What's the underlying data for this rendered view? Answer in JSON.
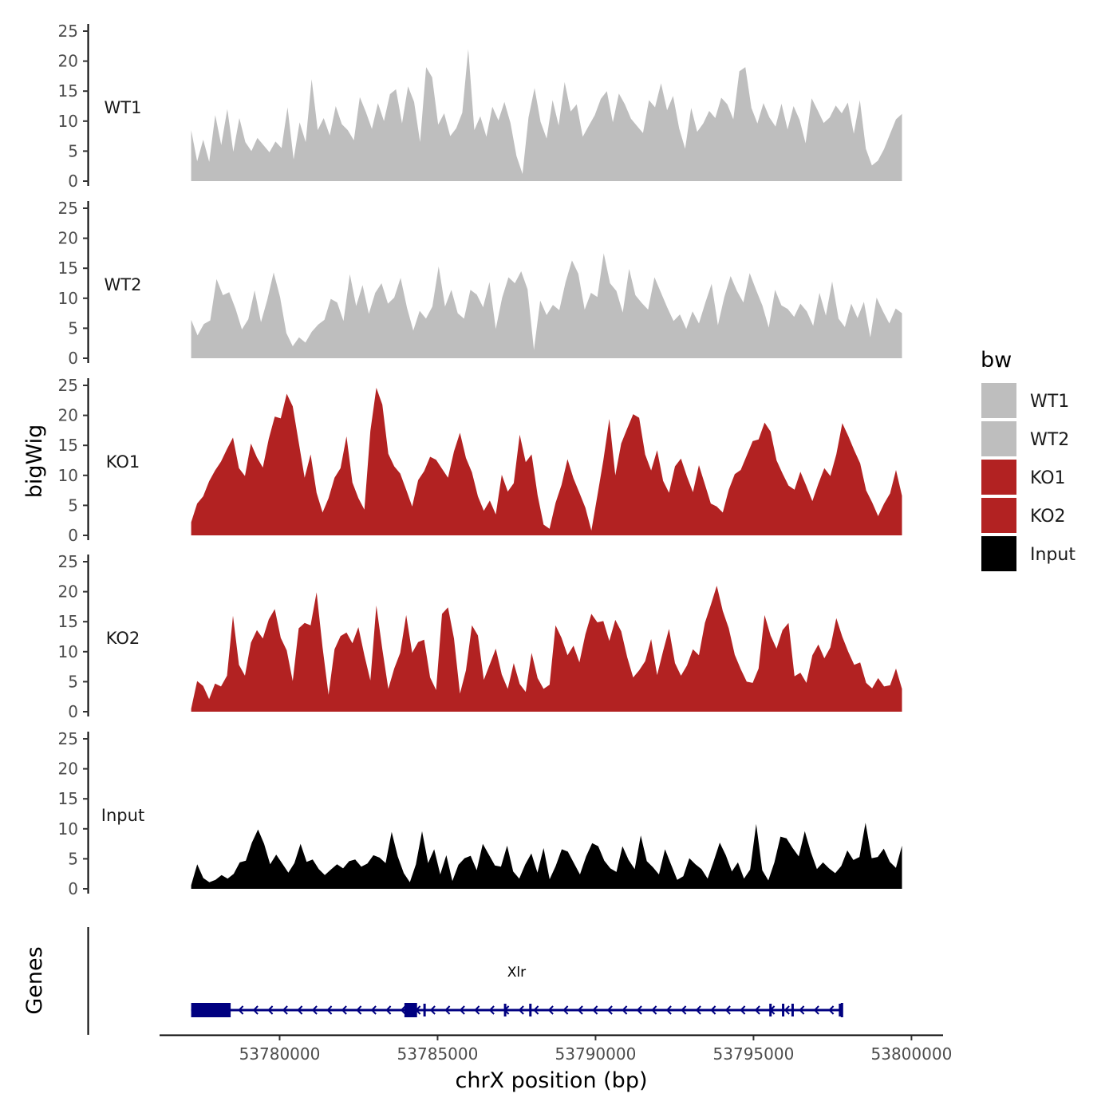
{
  "chart_data": {
    "type": "area",
    "xlabel": "chrX position (bp)",
    "ylabel": "bigWig",
    "genes_label": "Genes",
    "xlim": [
      53776200,
      53801000
    ],
    "x_range": [
      53777200,
      53799700
    ],
    "x_ticks": [
      53780000,
      53785000,
      53790000,
      53795000,
      53800000
    ],
    "x_tick_labels": [
      "53780000",
      "53785000",
      "53790000",
      "53795000",
      "53800000"
    ],
    "ylim": [
      0,
      25
    ],
    "y_ticks": [
      0,
      5,
      10,
      15,
      20,
      25
    ],
    "y_tick_labels": [
      "0",
      "5",
      "10",
      "15",
      "20",
      "25"
    ],
    "legend": {
      "title": "bw",
      "entries": [
        {
          "label": "WT1",
          "color": "#bebebe"
        },
        {
          "label": "WT2",
          "color": "#bebebe"
        },
        {
          "label": "KO1",
          "color": "#b22222"
        },
        {
          "label": "KO2",
          "color": "#b22222"
        },
        {
          "label": "Input",
          "color": "#000000"
        }
      ]
    },
    "series": [
      {
        "name": "WT1",
        "color": "#bebebe",
        "values": [
          8.5,
          3.3,
          6.9,
          3.2,
          11,
          6,
          12,
          4.9,
          10.5,
          6.5,
          5,
          7.2,
          6,
          4.8,
          6.6,
          5.5,
          12.3,
          3.6,
          9.8,
          6.5,
          17,
          8.5,
          10.5,
          7.6,
          12.5,
          9.5,
          8.5,
          6.8,
          14,
          11.5,
          8.7,
          13,
          10,
          14.5,
          15.3,
          9.6,
          15.8,
          13.2,
          6.5,
          19,
          17.3,
          9.4,
          11.3,
          7.5,
          8.8,
          11.4,
          22,
          8.5,
          10.8,
          7.4,
          12.4,
          10.1,
          13.2,
          9.7,
          4.2,
          1.2,
          10.6,
          15.5,
          9.9,
          7.1,
          13.5,
          9.3,
          16.5,
          11.6,
          12.8,
          7.4,
          9.2,
          11,
          13.7,
          15,
          9.8,
          14.6,
          12.8,
          10.4,
          9.2,
          8,
          13.5,
          12.3,
          16.3,
          11.8,
          14.2,
          8.8,
          5.4,
          12.2,
          8.2,
          9.6,
          11.7,
          10.5,
          13.9,
          12.8,
          10.3,
          18.3,
          19,
          12.2,
          9.6,
          13,
          10.6,
          9.1,
          12.9,
          8.6,
          12.5,
          10.2,
          6.3,
          13.8,
          11.8,
          9.7,
          10.6,
          12.6,
          11.3,
          13.1,
          7.9,
          13.5,
          5.4,
          2.6,
          3.4,
          5.3,
          7.8,
          10.3,
          11.2
        ]
      },
      {
        "name": "WT2",
        "color": "#bebebe",
        "values": [
          6.4,
          3.8,
          5.7,
          6.3,
          13.2,
          10.5,
          11,
          8.2,
          4.8,
          6.5,
          11.3,
          6,
          9.8,
          14.3,
          10.2,
          4.2,
          2,
          3.5,
          2.6,
          4.4,
          5.6,
          6.4,
          9.9,
          9.3,
          6.2,
          14,
          8.7,
          12.2,
          7.4,
          10.9,
          12.5,
          9.1,
          10.1,
          13.4,
          8.4,
          4.6,
          7.9,
          6.6,
          8.6,
          15.3,
          8.6,
          11.4,
          7.5,
          6.6,
          11.4,
          10.6,
          8.5,
          12.7,
          4.9,
          10.1,
          13.5,
          12.5,
          14.5,
          11.5,
          1.4,
          9.6,
          7.2,
          8.9,
          8,
          12.7,
          16.3,
          14.1,
          8.1,
          10.9,
          10.2,
          17.5,
          12.5,
          11.2,
          7.6,
          14.9,
          10.5,
          9.2,
          8.1,
          13.5,
          11,
          8.5,
          6.2,
          7.3,
          4.9,
          7.8,
          5.8,
          9.2,
          12.4,
          5.5,
          10.2,
          13.7,
          11.2,
          9.3,
          14.2,
          11.4,
          8.8,
          5.1,
          11.4,
          8.8,
          8.2,
          6.9,
          9.1,
          7.8,
          5.4,
          10.9,
          7.1,
          12.8,
          6.6,
          5.2,
          9.1,
          6.7,
          9.4,
          3.5,
          10.1,
          7.8,
          5.8,
          8.3,
          7.5
        ]
      },
      {
        "name": "KO1",
        "color": "#b22222",
        "values": [
          2.2,
          5.3,
          6.5,
          9,
          10.8,
          12.3,
          14.4,
          16.3,
          11.2,
          9.9,
          15.3,
          13,
          11.3,
          16.1,
          19.8,
          19.5,
          23.6,
          21.5,
          15.5,
          9.6,
          13.5,
          7.1,
          3.8,
          6.2,
          9.6,
          11.2,
          16.5,
          8.8,
          6.2,
          4.3,
          17.4,
          24.6,
          21.8,
          13.6,
          11.5,
          10.3,
          7.6,
          4.8,
          9.2,
          10.7,
          13.1,
          12.6,
          11.1,
          9.6,
          14,
          17.1,
          12.9,
          10.5,
          6.5,
          4.1,
          5.8,
          3.5,
          10.1,
          7.3,
          8.7,
          16.8,
          12.2,
          13.5,
          6.7,
          1.8,
          1.1,
          5.4,
          8.4,
          12.7,
          9.5,
          7.1,
          4.6,
          0.8,
          6.6,
          12.5,
          19.4,
          10,
          15.3,
          17.8,
          20.2,
          19.6,
          13.5,
          10.8,
          14.2,
          9.1,
          7.1,
          11.5,
          12.8,
          9.8,
          7.2,
          11.7,
          8.5,
          5.3,
          4.8,
          3.8,
          7.6,
          10.2,
          10.9,
          13.3,
          15.7,
          16,
          18.8,
          17.3,
          12.5,
          10.3,
          8.3,
          7.6,
          10.6,
          8.2,
          5.7,
          8.6,
          11.2,
          9.9,
          13.5,
          18.7,
          16.6,
          14.2,
          12,
          7.5,
          5.5,
          3.2,
          5.3,
          7,
          10.9,
          6.6
        ]
      },
      {
        "name": "KO2",
        "color": "#b22222",
        "values": [
          0.5,
          5.1,
          4.3,
          2.1,
          4.7,
          4.2,
          6,
          16,
          7.8,
          6,
          11.5,
          13.6,
          12.2,
          15.4,
          17.1,
          12.3,
          10.2,
          5.1,
          13.9,
          14.8,
          14.4,
          19.9,
          10.7,
          2.8,
          10.4,
          12.6,
          13.2,
          11.4,
          14.1,
          9.4,
          5.2,
          17.7,
          10.4,
          3.8,
          7.2,
          9.8,
          16.1,
          9.8,
          11.6,
          12,
          5.7,
          3.6,
          16.3,
          17.4,
          12.2,
          3,
          6.9,
          14.4,
          12.7,
          5.3,
          7.9,
          10.5,
          6.2,
          3.8,
          8.1,
          4.6,
          3.3,
          9.8,
          5.6,
          3.8,
          4.5,
          14.4,
          12.3,
          9.4,
          11,
          8.2,
          12.9,
          16.3,
          14.9,
          15.1,
          11.8,
          15.3,
          13.4,
          9.1,
          5.7,
          6.9,
          8.4,
          12.1,
          6.1,
          10.1,
          13.8,
          8.1,
          6,
          7.7,
          10.4,
          9.4,
          14.8,
          17.8,
          21,
          16.8,
          13.9,
          9.5,
          7.1,
          5,
          4.8,
          7.2,
          16.1,
          12.7,
          10.5,
          13.6,
          14.8,
          5.9,
          6.5,
          4.8,
          9.4,
          11.2,
          8.9,
          10.7,
          15.6,
          12.5,
          10,
          7.8,
          8.2,
          4.8,
          3.9,
          5.6,
          4.2,
          4.4,
          7.2,
          3.8
        ]
      },
      {
        "name": "Input",
        "color": "#000000",
        "values": [
          0.6,
          4.1,
          1.8,
          1.1,
          1.5,
          2.3,
          1.7,
          2.5,
          4.4,
          4.7,
          7.7,
          9.9,
          7.5,
          4.1,
          5.7,
          4.2,
          2.7,
          4.3,
          7.5,
          4.5,
          4.9,
          3.3,
          2.3,
          3.2,
          4.1,
          3.4,
          4.6,
          4.9,
          3.7,
          4.2,
          5.6,
          5.2,
          4.3,
          9.5,
          5.4,
          2.6,
          1.1,
          4.1,
          9.6,
          4.3,
          6.6,
          2.4,
          5.6,
          1.3,
          4,
          5.1,
          5.5,
          3.1,
          7.5,
          5.7,
          3.9,
          3.7,
          7.2,
          2.9,
          1.7,
          4.1,
          5.9,
          2.7,
          6.8,
          1.6,
          3.8,
          6.6,
          6.2,
          4.3,
          2.4,
          5.4,
          7.6,
          7.1,
          4.7,
          3.4,
          2.8,
          7.1,
          4.8,
          3.3,
          8.9,
          4.6,
          3.6,
          2.4,
          6.6,
          4,
          1.5,
          2.1,
          5.1,
          4.1,
          3.3,
          1.7,
          4.6,
          7.7,
          5.6,
          2.9,
          4.4,
          1.7,
          3.2,
          10.8,
          3.1,
          1.4,
          4.4,
          8.7,
          8.4,
          6.8,
          5.4,
          9.6,
          6.1,
          3.3,
          4.4,
          3.4,
          2.6,
          3.8,
          6.4,
          4.8,
          5.3,
          11,
          5.1,
          5.3,
          6.7,
          4.5,
          3.5,
          7.2
        ]
      }
    ],
    "gene_track": {
      "gene_name": "Xlr",
      "strand": "-",
      "span": [
        53777200,
        53797800
      ],
      "exons": [
        [
          53777200,
          53778450
        ],
        [
          53783950,
          53784350
        ],
        [
          53784550,
          53784620
        ],
        [
          53787100,
          53787160
        ],
        [
          53787900,
          53787970
        ],
        [
          53795500,
          53795560
        ],
        [
          53795900,
          53795960
        ],
        [
          53796200,
          53796270
        ],
        [
          53797700,
          53797760
        ]
      ]
    }
  }
}
